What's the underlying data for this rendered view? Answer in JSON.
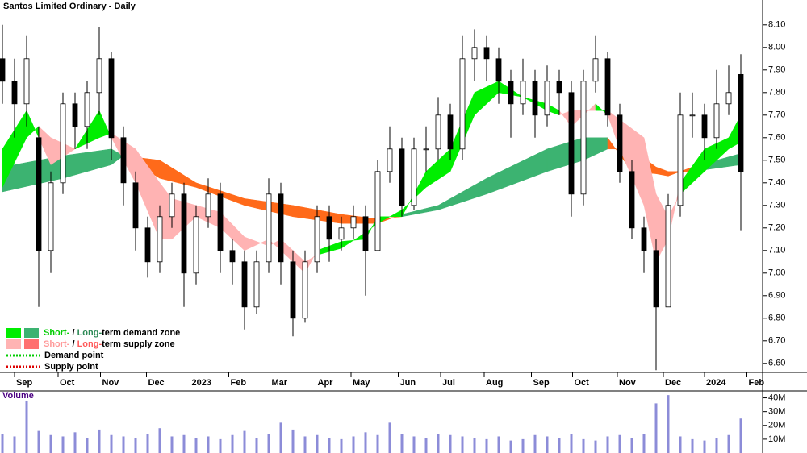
{
  "chart_data": {
    "type": "candlestick",
    "title": "Santos Limited Ordinary - Daily",
    "xlim": [
      -0.2,
      62.8
    ],
    "xticks": [
      {
        "value": 1.0,
        "label": "Sep"
      },
      {
        "value": 4.6,
        "label": "Oct"
      },
      {
        "value": 8.1,
        "label": "Nov"
      },
      {
        "value": 11.9,
        "label": "Dec"
      },
      {
        "value": 15.5,
        "label": "2023"
      },
      {
        "value": 18.7,
        "label": "Feb"
      },
      {
        "value": 22.1,
        "label": "Mar"
      },
      {
        "value": 25.9,
        "label": "Apr"
      },
      {
        "value": 28.8,
        "label": "May"
      },
      {
        "value": 32.7,
        "label": "Jun"
      },
      {
        "value": 36.2,
        "label": "Jul"
      },
      {
        "value": 39.8,
        "label": "Aug"
      },
      {
        "value": 43.7,
        "label": "Sep"
      },
      {
        "value": 47.1,
        "label": "Oct"
      },
      {
        "value": 50.8,
        "label": "Nov"
      },
      {
        "value": 54.6,
        "label": "Dec"
      },
      {
        "value": 58.0,
        "label": "2024"
      },
      {
        "value": 61.5,
        "label": "Feb"
      }
    ],
    "ylim": [
      6.56,
      8.21
    ],
    "yticks": [
      {
        "value": 6.6,
        "label": "6.60"
      },
      {
        "value": 6.7,
        "label": "6.70"
      },
      {
        "value": 6.8,
        "label": "6.80"
      },
      {
        "value": 6.9,
        "label": "6.90"
      },
      {
        "value": 7.0,
        "label": "7.00"
      },
      {
        "value": 7.1,
        "label": "7.10"
      },
      {
        "value": 7.2,
        "label": "7.20"
      },
      {
        "value": 7.3,
        "label": "7.30"
      },
      {
        "value": 7.4,
        "label": "7.40"
      },
      {
        "value": 7.5,
        "label": "7.50"
      },
      {
        "value": 7.6,
        "label": "7.60"
      },
      {
        "value": 7.7,
        "label": "7.70"
      },
      {
        "value": 7.8,
        "label": "7.80"
      },
      {
        "value": 7.9,
        "label": "7.90"
      },
      {
        "value": 8.0,
        "label": "8.00"
      },
      {
        "value": 8.1,
        "label": "8.10"
      }
    ],
    "open": [
      7.95,
      7.85,
      7.75,
      7.6,
      7.1,
      7.4,
      7.75,
      7.65,
      7.8,
      7.95,
      7.6,
      7.4,
      7.2,
      7.05,
      7.25,
      7.35,
      7.0,
      7.25,
      7.35,
      7.1,
      7.05,
      6.85,
      7.05,
      7.35,
      7.05,
      6.8,
      7.05,
      7.25,
      7.15,
      7.2,
      7.25,
      7.1,
      7.45,
      7.55,
      7.3,
      7.55,
      7.55,
      7.7,
      7.55,
      7.95,
      8.0,
      7.95,
      7.85,
      7.75,
      7.85,
      7.7,
      7.85,
      7.8,
      7.35,
      7.85,
      7.95,
      7.7,
      7.45,
      7.2,
      7.1,
      6.85,
      7.3,
      7.7,
      7.7,
      7.6,
      7.75,
      7.88
    ],
    "high": [
      8.1,
      7.95,
      8.05,
      7.65,
      7.45,
      7.8,
      7.8,
      7.85,
      8.09,
      7.98,
      7.65,
      7.45,
      7.25,
      7.3,
      7.4,
      7.4,
      7.3,
      7.42,
      7.4,
      7.15,
      7.1,
      7.1,
      7.42,
      7.4,
      7.1,
      7.1,
      7.3,
      7.3,
      7.25,
      7.3,
      7.3,
      7.5,
      7.65,
      7.6,
      7.6,
      7.65,
      7.78,
      7.75,
      8.05,
      8.08,
      8.05,
      8.0,
      7.9,
      7.95,
      7.9,
      7.92,
      7.9,
      7.85,
      7.9,
      8.05,
      7.98,
      7.75,
      7.5,
      7.25,
      7.15,
      7.35,
      7.8,
      7.8,
      7.75,
      7.9,
      7.92,
      7.97
    ],
    "low": [
      7.75,
      7.6,
      7.65,
      6.85,
      7.0,
      7.35,
      7.55,
      7.55,
      7.7,
      7.5,
      7.3,
      7.1,
      6.98,
      7.0,
      7.2,
      6.85,
      6.95,
      7.2,
      7.0,
      6.95,
      6.75,
      6.82,
      7.0,
      6.95,
      6.72,
      6.78,
      7.0,
      7.05,
      7.1,
      7.15,
      6.9,
      7.1,
      7.4,
      7.25,
      7.28,
      7.45,
      7.5,
      7.5,
      7.5,
      7.85,
      7.85,
      7.75,
      7.6,
      7.7,
      7.6,
      7.65,
      7.7,
      7.25,
      7.3,
      7.8,
      7.65,
      7.4,
      7.15,
      7.0,
      6.57,
      6.85,
      7.25,
      7.6,
      7.5,
      7.55,
      7.7,
      7.19
    ],
    "close": [
      7.85,
      7.75,
      7.95,
      7.1,
      7.4,
      7.75,
      7.65,
      7.8,
      7.95,
      7.6,
      7.4,
      7.2,
      7.05,
      7.25,
      7.35,
      7.0,
      7.25,
      7.35,
      7.1,
      7.05,
      6.85,
      7.05,
      7.35,
      7.05,
      6.8,
      7.05,
      7.25,
      7.15,
      7.2,
      7.25,
      7.1,
      7.45,
      7.55,
      7.3,
      7.55,
      7.55,
      7.7,
      7.55,
      7.95,
      8.0,
      7.95,
      7.85,
      7.75,
      7.85,
      7.7,
      7.85,
      7.8,
      7.35,
      7.85,
      7.95,
      7.7,
      7.45,
      7.2,
      7.1,
      6.85,
      7.3,
      7.7,
      7.7,
      7.6,
      7.75,
      7.8,
      7.45
    ],
    "up_color": "#ffffff",
    "down_color": "#000000",
    "bands": [
      {
        "x": [
          0,
          5,
          9,
          10,
          13,
          16,
          20,
          24,
          28,
          31,
          33,
          36,
          40,
          45,
          48,
          50,
          52,
          54,
          55,
          57,
          61
        ],
        "fast": [
          7.47,
          7.52,
          7.55,
          7.52,
          7.42,
          7.38,
          7.3,
          7.25,
          7.22,
          7.22,
          7.26,
          7.3,
          7.42,
          7.55,
          7.6,
          7.6,
          7.45,
          7.44,
          7.43,
          7.47,
          7.53
        ],
        "slow": [
          7.36,
          7.42,
          7.48,
          7.52,
          7.5,
          7.4,
          7.33,
          7.3,
          7.26,
          7.24,
          7.25,
          7.28,
          7.35,
          7.45,
          7.5,
          7.55,
          7.55,
          7.47,
          7.45,
          7.45,
          7.48
        ],
        "up_color": "#3cb371",
        "down_color": "#ff6a1a"
      },
      {
        "x": [
          0,
          2,
          3,
          4,
          6,
          8,
          9,
          11,
          13,
          14,
          16,
          18,
          20,
          22,
          23,
          25,
          26,
          28,
          30,
          31,
          33,
          35,
          37,
          39,
          41,
          43,
          45,
          46,
          47,
          49,
          50,
          51,
          53,
          54,
          55,
          56,
          58,
          60,
          61
        ],
        "fast": [
          7.55,
          7.72,
          7.6,
          7.48,
          7.55,
          7.72,
          7.6,
          7.4,
          7.15,
          7.15,
          7.25,
          7.2,
          7.1,
          7.15,
          7.1,
          7.0,
          7.1,
          7.14,
          7.15,
          7.25,
          7.25,
          7.45,
          7.55,
          7.8,
          7.85,
          7.78,
          7.75,
          7.72,
          7.65,
          7.75,
          7.7,
          7.55,
          7.3,
          7.05,
          7.15,
          7.4,
          7.55,
          7.6,
          7.7
        ],
        "slow": [
          7.38,
          7.6,
          7.65,
          7.6,
          7.55,
          7.6,
          7.62,
          7.55,
          7.4,
          7.33,
          7.3,
          7.27,
          7.16,
          7.12,
          7.15,
          7.05,
          7.08,
          7.11,
          7.18,
          7.22,
          7.28,
          7.38,
          7.45,
          7.7,
          7.8,
          7.78,
          7.72,
          7.7,
          7.72,
          7.72,
          7.72,
          7.68,
          7.6,
          7.35,
          7.25,
          7.35,
          7.45,
          7.55,
          7.58
        ],
        "up_color": "#00ee00",
        "down_color": "#ffb3b3"
      }
    ],
    "legend": [
      {
        "swatches": [
          "#00ee00",
          "#3cb371"
        ],
        "parts": [
          "Short-",
          " / ",
          "Long-",
          "term demand zone"
        ],
        "colors": [
          "#00cc00",
          "#000000",
          "#2e8b57",
          "#000000"
        ]
      },
      {
        "swatches": [
          "#ffb3b3",
          "#ff7070"
        ],
        "parts": [
          "Short-",
          " / ",
          "Long-",
          "term supply zone"
        ],
        "colors": [
          "#ff9999",
          "#000000",
          "#ff5a5a",
          "#000000"
        ]
      },
      {
        "dots": "#00cc00",
        "parts": [
          "Demand point"
        ],
        "colors": [
          "#000000"
        ]
      },
      {
        "dots": "#dd0000",
        "parts": [
          "Supply point"
        ],
        "colors": [
          "#000000"
        ]
      }
    ],
    "volume": {
      "label": "Volume",
      "color": "#8c8cd8",
      "ylim": [
        0,
        45
      ],
      "yticks": [
        {
          "value": 10,
          "label": "10M"
        },
        {
          "value": 20,
          "label": "20M"
        },
        {
          "value": 30,
          "label": "30M"
        },
        {
          "value": 40,
          "label": "40M"
        }
      ],
      "values": [
        14,
        12,
        38,
        16,
        13,
        12,
        15,
        11,
        17,
        13,
        12,
        11,
        14,
        18,
        12,
        13,
        11,
        12,
        10,
        13,
        16,
        11,
        14,
        22,
        17,
        12,
        13,
        11,
        10,
        12,
        15,
        13,
        22,
        14,
        12,
        11,
        14,
        13,
        12,
        11,
        10,
        12,
        9,
        10,
        13,
        12,
        11,
        14,
        10,
        9,
        12,
        13,
        11,
        14,
        36,
        42,
        12,
        10,
        9,
        11,
        13,
        25
      ]
    }
  }
}
